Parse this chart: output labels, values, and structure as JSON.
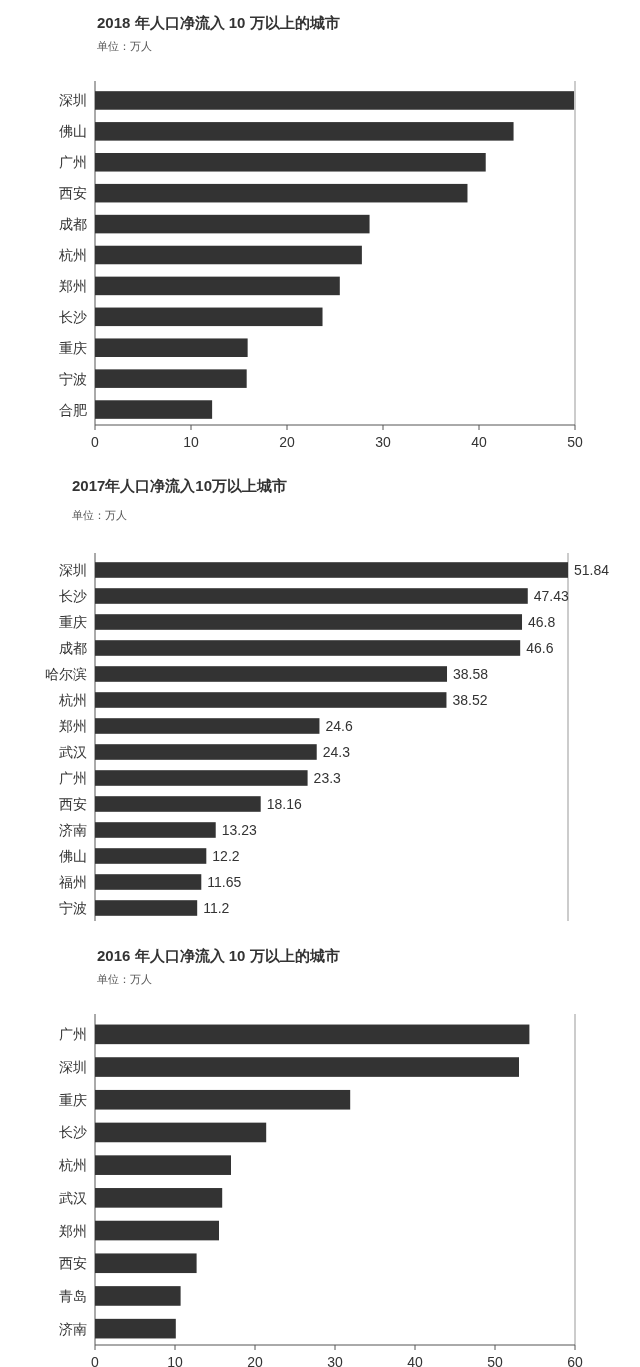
{
  "chart_data": [
    {
      "type": "bar",
      "orientation": "horizontal",
      "title": "2018 年人口净流入 10 万以上的城市",
      "subtitle": "单位：万人",
      "categories": [
        "深圳",
        "佛山",
        "广州",
        "西安",
        "成都",
        "杭州",
        "郑州",
        "长沙",
        "重庆",
        "宁波",
        "合肥"
      ],
      "values": [
        49.9,
        43.6,
        40.7,
        38.8,
        28.6,
        27.8,
        25.5,
        23.7,
        15.9,
        15.8,
        12.2
      ],
      "color": "#333333",
      "xlim": [
        0,
        50
      ],
      "xticks": [
        0,
        10,
        20,
        30,
        40,
        50
      ]
    },
    {
      "type": "bar",
      "orientation": "horizontal",
      "title": "2017年人口净流入10万以上城市",
      "subtitle": "单位：万人",
      "categories": [
        "深圳",
        "长沙",
        "重庆",
        "成都",
        "哈尔滨",
        "杭州",
        "郑州",
        "武汉",
        "广州",
        "西安",
        "济南",
        "佛山",
        "福州",
        "宁波"
      ],
      "values": [
        51.84,
        47.43,
        46.8,
        46.6,
        38.58,
        38.52,
        24.6,
        24.3,
        23.3,
        18.16,
        13.23,
        12.2,
        11.65,
        11.2
      ],
      "color": "#333333",
      "data_labels": true,
      "tick_labels": "y"
    },
    {
      "type": "bar",
      "orientation": "horizontal",
      "title": "2016 年人口净流入 10 万以上的城市",
      "subtitle": "单位：万人",
      "categories": [
        "广州",
        "深圳",
        "重庆",
        "长沙",
        "杭州",
        "武汉",
        "郑州",
        "西安",
        "青岛",
        "济南"
      ],
      "values": [
        54.3,
        53.0,
        31.9,
        21.4,
        17.0,
        15.9,
        15.5,
        12.7,
        10.7,
        10.1
      ],
      "color": "#333333",
      "xlim": [
        0,
        60
      ],
      "xticks": [
        0,
        10,
        20,
        30,
        40,
        50,
        60
      ]
    }
  ]
}
